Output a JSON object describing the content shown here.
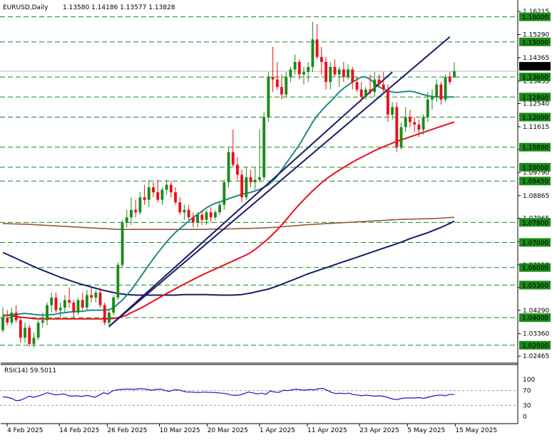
{
  "header": {
    "symbol_label": "EURUSD,Daily",
    "ohlc_label": "1.13580 1.14186 1.13577 1.13828"
  },
  "rsi": {
    "label": "RSI(14) 59.5011",
    "levels": [
      100,
      70,
      30,
      0
    ],
    "overbought": 70,
    "oversold": 30,
    "values": [
      53,
      52,
      49,
      43,
      44,
      49,
      55,
      52,
      55,
      59,
      64,
      62,
      58,
      60,
      61,
      56,
      55,
      56,
      54,
      57,
      55,
      52,
      58,
      64,
      61,
      69,
      72,
      73,
      74,
      74,
      73,
      75,
      75,
      73,
      71,
      73,
      74,
      70,
      68,
      72,
      72,
      69,
      66,
      66,
      65,
      65,
      66,
      65,
      65,
      64,
      63,
      62,
      58,
      57,
      58,
      62,
      66,
      64,
      61,
      63,
      60,
      69,
      66,
      65,
      71,
      70,
      72,
      74,
      72,
      71,
      73,
      72,
      75,
      76,
      71,
      65,
      62,
      63,
      62,
      63,
      59,
      58,
      56,
      58,
      56,
      55,
      56,
      54,
      51,
      47,
      46,
      49,
      50,
      50,
      50,
      51,
      49,
      52,
      55,
      57,
      58,
      56,
      60,
      59.5
    ]
  },
  "colors": {
    "bull_candle": "#1a8a1a",
    "bear_candle": "#e8101b",
    "ma_fast": "#1f8a85",
    "ma_mid": "#e8101b",
    "ma_slow": "#1a1a6b",
    "ma_200": "#96583a",
    "trendline": "#1a1a6b",
    "level_line": "#1a8a1a",
    "price_tag_bg": "#1a8a1a",
    "current_price_tag_bg": "#000000",
    "rsi_line": "#1414c8"
  },
  "chart_data": {
    "type": "candlestick",
    "title": "EURUSD,Daily",
    "ylim": [
      1.023,
      1.165
    ],
    "y_tick_labels": [
      "1.16215",
      "1.15290",
      "1.14365",
      "1.13435",
      "1.12540",
      "1.11615",
      "1.10715",
      "1.09790",
      "1.08865",
      "1.07965",
      "1.07035",
      "1.06110",
      "1.05210",
      "1.04290",
      "1.03360",
      "1.02465"
    ],
    "x_tick_labels": [
      "4 Feb 2025",
      "14 Feb 2025",
      "26 Feb 2025",
      "10 Mar 2025",
      "20 Mar 2025",
      "1 Apr 2025",
      "11 Apr 2025",
      "23 Apr 2025",
      "5 May 2025",
      "15 May 2025"
    ],
    "grid": false,
    "current_price": 1.13828,
    "horizontal_levels": [
      1.16,
      1.15,
      1.136,
      1.128,
      1.12,
      1.108,
      1.1,
      1.0945,
      1.078,
      1.07,
      1.06,
      1.053,
      1.04,
      1.029
    ],
    "level_labels": [
      "1.16000",
      "1.15000",
      "1.13600",
      "1.12800",
      "1.12000",
      "1.10800",
      "1.10000",
      "1.09450",
      "1.07800",
      "1.07000",
      "1.06000",
      "1.05300",
      "1.04000",
      "1.02900"
    ],
    "trendlines": [
      {
        "from_bar": 24,
        "from_price": 1.0365,
        "to_bar": 101,
        "to_price": 1.152
      },
      {
        "from_bar": 24,
        "from_price": 1.0365,
        "to_bar": 88,
        "to_price": 1.138
      }
    ],
    "series": [
      {
        "name": "MA slow",
        "values": [
          1.066,
          1.0652,
          1.0644,
          1.0636,
          1.0628,
          1.062,
          1.0612,
          1.0604,
          1.0596,
          1.0589,
          1.0582,
          1.0575,
          1.0568,
          1.0561,
          1.0555,
          1.0549,
          1.0543,
          1.0537,
          1.0532,
          1.0527,
          1.0522,
          1.0517,
          1.0512,
          1.0508,
          1.0504,
          1.05,
          1.0496,
          1.0494,
          1.0492,
          1.0491,
          1.049,
          1.049,
          1.049,
          1.049,
          1.049,
          1.049,
          1.049,
          1.049,
          1.049,
          1.049,
          1.0491,
          1.0492,
          1.0492,
          1.0492,
          1.0492,
          1.0492,
          1.0492,
          1.0491,
          1.0491,
          1.049,
          1.049,
          1.049,
          1.049,
          1.0491,
          1.0492,
          1.0495,
          1.0498,
          1.0502,
          1.0506,
          1.051,
          1.0514,
          1.052,
          1.0526,
          1.0533,
          1.054,
          1.0547,
          1.0554,
          1.0561,
          1.0568,
          1.0575,
          1.0581,
          1.0587,
          1.0593,
          1.0599,
          1.0605,
          1.0611,
          1.0617,
          1.0623,
          1.0629,
          1.0635,
          1.0641,
          1.0647,
          1.0653,
          1.0659,
          1.0665,
          1.0671,
          1.0677,
          1.0683,
          1.0689,
          1.0695,
          1.0701,
          1.0708,
          1.0715,
          1.0721,
          1.0727,
          1.0733,
          1.0739,
          1.0746,
          1.0753,
          1.076,
          1.0768,
          1.0776,
          1.0785
        ]
      },
      {
        "name": "MA 200",
        "values": [
          1.0775,
          1.0775,
          1.0774,
          1.0774,
          1.0773,
          1.0773,
          1.0772,
          1.0771,
          1.077,
          1.0769,
          1.0768,
          1.0767,
          1.0766,
          1.0765,
          1.0764,
          1.0763,
          1.0762,
          1.0761,
          1.076,
          1.0759,
          1.0758,
          1.0757,
          1.0756,
          1.0755,
          1.0754,
          1.0753,
          1.0752,
          1.0752,
          1.0752,
          1.0752,
          1.0752,
          1.0752,
          1.0752,
          1.0752,
          1.0752,
          1.0752,
          1.0752,
          1.0752,
          1.0752,
          1.0752,
          1.0752,
          1.0752,
          1.0752,
          1.0752,
          1.0752,
          1.0752,
          1.0752,
          1.0753,
          1.0753,
          1.0753,
          1.0753,
          1.0754,
          1.0754,
          1.0755,
          1.0755,
          1.0756,
          1.0756,
          1.0757,
          1.0757,
          1.0758,
          1.0759,
          1.076,
          1.0761,
          1.0762,
          1.0764,
          1.0765,
          1.0767,
          1.0768,
          1.077,
          1.0771,
          1.0772,
          1.0773,
          1.0774,
          1.0775,
          1.0776,
          1.0777,
          1.0778,
          1.0779,
          1.078,
          1.0781,
          1.0782,
          1.0783,
          1.0784,
          1.0785,
          1.0786,
          1.0787,
          1.0788,
          1.0789,
          1.079,
          1.0791,
          1.0792,
          1.0792,
          1.0793,
          1.0793,
          1.0794,
          1.0794,
          1.0795,
          1.0795,
          1.0796,
          1.0797,
          1.0798,
          1.0799,
          1.08
        ]
      },
      {
        "name": "MA mid",
        "values": [
          1.041,
          1.041,
          1.0407,
          1.0405,
          1.0402,
          1.04,
          1.0398,
          1.0396,
          1.0395,
          1.0395,
          1.0395,
          1.0395,
          1.0395,
          1.0395,
          1.0395,
          1.0395,
          1.0395,
          1.0395,
          1.0395,
          1.0395,
          1.0395,
          1.0395,
          1.0395,
          1.0395,
          1.0395,
          1.0397,
          1.04,
          1.0404,
          1.041,
          1.042,
          1.0428,
          1.0437,
          1.0446,
          1.0456,
          1.0466,
          1.0476,
          1.0486,
          1.0496,
          1.0505,
          1.0515,
          1.0525,
          1.0534,
          1.0543,
          1.0552,
          1.0561,
          1.057,
          1.0578,
          1.0586,
          1.0594,
          1.0602,
          1.061,
          1.0618,
          1.0626,
          1.0634,
          1.0642,
          1.065,
          1.066,
          1.0672,
          1.0686,
          1.07,
          1.0716,
          1.0733,
          1.075,
          1.077,
          1.079,
          1.0812,
          1.0832,
          1.0852,
          1.087,
          1.0888,
          1.0906,
          1.0922,
          1.0938,
          1.0952,
          1.0965,
          1.0977,
          1.0988,
          1.0999,
          1.101,
          1.102,
          1.103,
          1.1039,
          1.1048,
          1.1057,
          1.1066,
          1.1074,
          1.1082,
          1.1089,
          1.1096,
          1.1103,
          1.1109,
          1.1115,
          1.1121,
          1.1127,
          1.1133,
          1.1139,
          1.1145,
          1.1151,
          1.1157,
          1.1163,
          1.1169,
          1.1175,
          1.118
        ]
      },
      {
        "name": "MA fast",
        "values": [
          1.0405,
          1.041,
          1.0412,
          1.0413,
          1.0415,
          1.0417,
          1.0415,
          1.0413,
          1.0411,
          1.041,
          1.041,
          1.0412,
          1.0414,
          1.0418,
          1.042,
          1.0422,
          1.0424,
          1.0425,
          1.0425,
          1.0428,
          1.043,
          1.043,
          1.043,
          1.043,
          1.0432,
          1.044,
          1.0455,
          1.047,
          1.049,
          1.051,
          1.0535,
          1.056,
          1.0585,
          1.061,
          1.0635,
          1.0658,
          1.068,
          1.0702,
          1.0722,
          1.074,
          1.0755,
          1.077,
          1.0785,
          1.08,
          1.0812,
          1.0825,
          1.0838,
          1.0848,
          1.0856,
          1.0862,
          1.0868,
          1.0874,
          1.088,
          1.0886,
          1.0892,
          1.0896,
          1.09,
          1.0905,
          1.0912,
          1.092,
          1.093,
          1.0945,
          1.0965,
          1.099,
          1.1015,
          1.104,
          1.1065,
          1.109,
          1.112,
          1.115,
          1.118,
          1.1205,
          1.1225,
          1.1245,
          1.1262,
          1.128,
          1.13,
          1.1315,
          1.1328,
          1.134,
          1.135,
          1.136,
          1.136,
          1.135,
          1.1335,
          1.132,
          1.1312,
          1.1305,
          1.13,
          1.1298,
          1.13,
          1.1302,
          1.1303,
          1.13,
          1.1295,
          1.129,
          1.1285,
          1.1282,
          1.128,
          1.128,
          1.128,
          1.128,
          1.128
        ]
      }
    ],
    "candles": [
      [
        1.035,
        1.044,
        1.034,
        1.04
      ],
      [
        1.04,
        1.043,
        1.037,
        1.038
      ],
      [
        1.038,
        1.044,
        1.037,
        1.042
      ],
      [
        1.042,
        1.045,
        1.038,
        1.039
      ],
      [
        1.039,
        1.04,
        1.03,
        1.032
      ],
      [
        1.032,
        1.038,
        1.03,
        1.036
      ],
      [
        1.036,
        1.037,
        1.0285,
        1.0295
      ],
      [
        1.0295,
        1.034,
        1.028,
        1.032
      ],
      [
        1.032,
        1.039,
        1.031,
        1.038
      ],
      [
        1.038,
        1.042,
        1.036,
        1.039
      ],
      [
        1.039,
        1.046,
        1.037,
        1.045
      ],
      [
        1.045,
        1.05,
        1.042,
        1.048
      ],
      [
        1.048,
        1.05,
        1.042,
        1.043
      ],
      [
        1.043,
        1.046,
        1.04,
        1.044
      ],
      [
        1.044,
        1.049,
        1.042,
        1.047
      ],
      [
        1.047,
        1.052,
        1.044,
        1.046
      ],
      [
        1.046,
        1.047,
        1.04,
        1.042
      ],
      [
        1.042,
        1.048,
        1.041,
        1.047
      ],
      [
        1.047,
        1.05,
        1.043,
        1.044
      ],
      [
        1.044,
        1.051,
        1.043,
        1.049
      ],
      [
        1.049,
        1.052,
        1.046,
        1.048
      ],
      [
        1.048,
        1.051,
        1.046,
        1.05
      ],
      [
        1.05,
        1.052,
        1.044,
        1.045
      ],
      [
        1.045,
        1.046,
        1.037,
        1.038
      ],
      [
        1.038,
        1.043,
        1.036,
        1.042
      ],
      [
        1.042,
        1.049,
        1.041,
        1.048
      ],
      [
        1.048,
        1.062,
        1.047,
        1.061
      ],
      [
        1.061,
        1.079,
        1.06,
        1.078
      ],
      [
        1.078,
        1.083,
        1.076,
        1.08
      ],
      [
        1.08,
        1.088,
        1.077,
        1.083
      ],
      [
        1.083,
        1.087,
        1.08,
        1.082
      ],
      [
        1.082,
        1.09,
        1.081,
        1.088
      ],
      [
        1.088,
        1.093,
        1.085,
        1.087
      ],
      [
        1.087,
        1.095,
        1.084,
        1.092
      ],
      [
        1.092,
        1.094,
        1.088,
        1.09
      ],
      [
        1.09,
        1.095,
        1.086,
        1.087
      ],
      [
        1.087,
        1.092,
        1.085,
        1.091
      ],
      [
        1.091,
        1.095,
        1.089,
        1.093
      ],
      [
        1.093,
        1.0945,
        1.088,
        1.09
      ],
      [
        1.09,
        1.092,
        1.085,
        1.086
      ],
      [
        1.086,
        1.088,
        1.081,
        1.082
      ],
      [
        1.082,
        1.085,
        1.079,
        1.083
      ],
      [
        1.083,
        1.085,
        1.079,
        1.08
      ],
      [
        1.08,
        1.082,
        1.076,
        1.078
      ],
      [
        1.078,
        1.082,
        1.076,
        1.081
      ],
      [
        1.081,
        1.083,
        1.077,
        1.079
      ],
      [
        1.079,
        1.083,
        1.077,
        1.082
      ],
      [
        1.082,
        1.084,
        1.078,
        1.08
      ],
      [
        1.08,
        1.083,
        1.079,
        1.082
      ],
      [
        1.082,
        1.086,
        1.081,
        1.085
      ],
      [
        1.085,
        1.095,
        1.083,
        1.094
      ],
      [
        1.094,
        1.108,
        1.092,
        1.106
      ],
      [
        1.106,
        1.115,
        1.1,
        1.101
      ],
      [
        1.101,
        1.104,
        1.095,
        1.097
      ],
      [
        1.097,
        1.099,
        1.086,
        1.088
      ],
      [
        1.088,
        1.1,
        1.087,
        1.096
      ],
      [
        1.096,
        1.099,
        1.092,
        1.094
      ],
      [
        1.094,
        1.1,
        1.091,
        1.095
      ],
      [
        1.095,
        1.115,
        1.094,
        1.096
      ],
      [
        1.096,
        1.122,
        1.095,
        1.12
      ],
      [
        1.12,
        1.138,
        1.118,
        1.136
      ],
      [
        1.136,
        1.148,
        1.13,
        1.135
      ],
      [
        1.135,
        1.142,
        1.131,
        1.132
      ],
      [
        1.132,
        1.137,
        1.127,
        1.129
      ],
      [
        1.129,
        1.138,
        1.128,
        1.136
      ],
      [
        1.136,
        1.14,
        1.134,
        1.139
      ],
      [
        1.139,
        1.145,
        1.137,
        1.142
      ],
      [
        1.142,
        1.143,
        1.135,
        1.137
      ],
      [
        1.137,
        1.14,
        1.133,
        1.138
      ],
      [
        1.138,
        1.142,
        1.134,
        1.14
      ],
      [
        1.14,
        1.158,
        1.138,
        1.151
      ],
      [
        1.151,
        1.157,
        1.143,
        1.144
      ],
      [
        1.144,
        1.148,
        1.137,
        1.142
      ],
      [
        1.142,
        1.144,
        1.131,
        1.134
      ],
      [
        1.134,
        1.142,
        1.131,
        1.14
      ],
      [
        1.14,
        1.143,
        1.136,
        1.137
      ],
      [
        1.137,
        1.14,
        1.132,
        1.139
      ],
      [
        1.139,
        1.142,
        1.134,
        1.136
      ],
      [
        1.136,
        1.141,
        1.135,
        1.139
      ],
      [
        1.139,
        1.14,
        1.131,
        1.134
      ],
      [
        1.134,
        1.136,
        1.13,
        1.131
      ],
      [
        1.131,
        1.134,
        1.126,
        1.128
      ],
      [
        1.128,
        1.132,
        1.127,
        1.131
      ],
      [
        1.131,
        1.137,
        1.129,
        1.13
      ],
      [
        1.13,
        1.138,
        1.128,
        1.135
      ],
      [
        1.135,
        1.137,
        1.132,
        1.133
      ],
      [
        1.133,
        1.138,
        1.13,
        1.131
      ],
      [
        1.131,
        1.133,
        1.118,
        1.121
      ],
      [
        1.121,
        1.126,
        1.119,
        1.124
      ],
      [
        1.124,
        1.126,
        1.106,
        1.108
      ],
      [
        1.108,
        1.118,
        1.107,
        1.116
      ],
      [
        1.116,
        1.124,
        1.114,
        1.12
      ],
      [
        1.12,
        1.123,
        1.116,
        1.118
      ],
      [
        1.118,
        1.12,
        1.114,
        1.117
      ],
      [
        1.117,
        1.119,
        1.112,
        1.115
      ],
      [
        1.115,
        1.121,
        1.113,
        1.12
      ],
      [
        1.12,
        1.13,
        1.118,
        1.127
      ],
      [
        1.127,
        1.131,
        1.123,
        1.128
      ],
      [
        1.128,
        1.135,
        1.126,
        1.133
      ],
      [
        1.133,
        1.134,
        1.125,
        1.127
      ],
      [
        1.127,
        1.137,
        1.126,
        1.136
      ],
      [
        1.136,
        1.138,
        1.133,
        1.134
      ],
      [
        1.1358,
        1.14186,
        1.13577,
        1.13828
      ]
    ]
  }
}
